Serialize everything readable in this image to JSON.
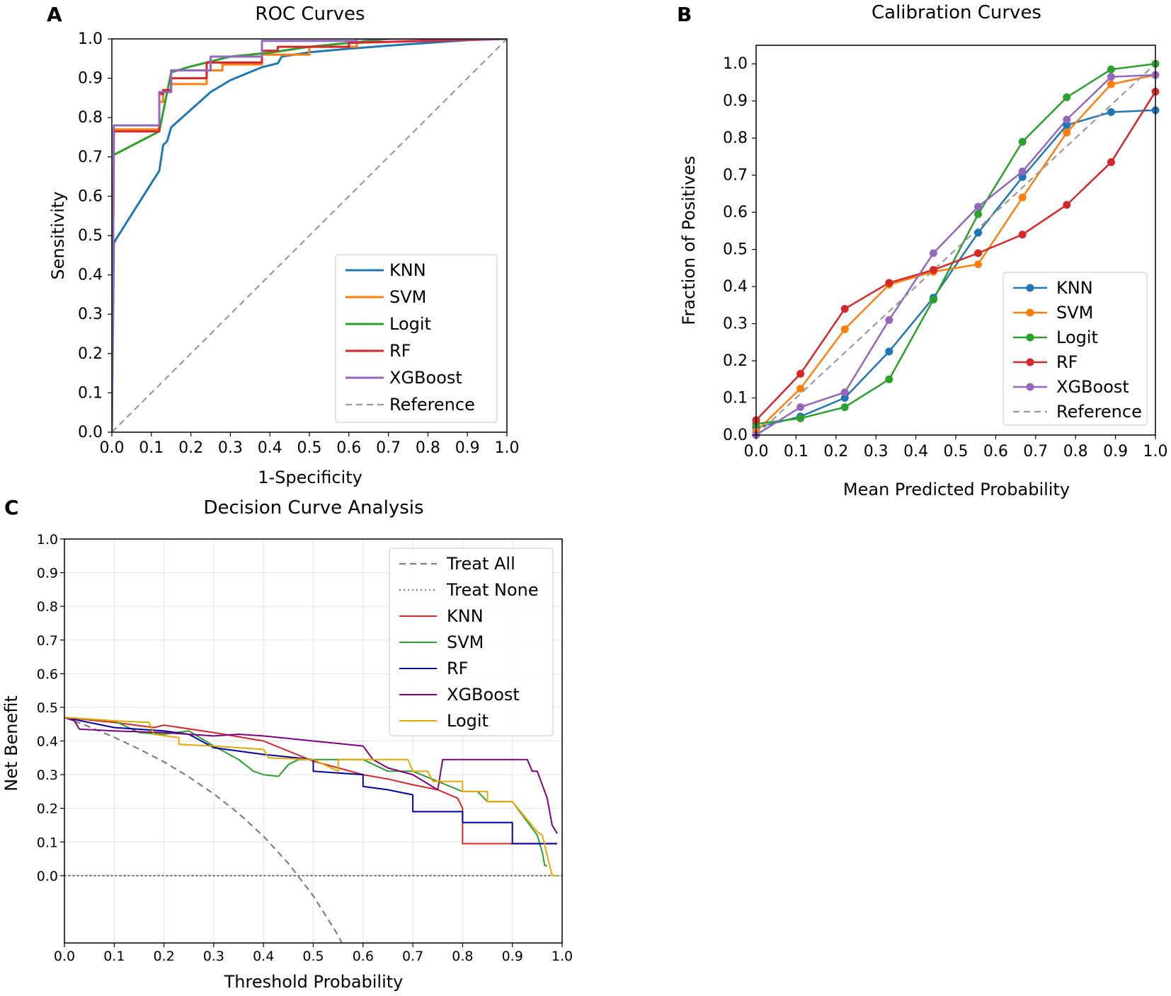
{
  "chart_data": [
    {
      "panel": "A",
      "type": "line",
      "title": "ROC Curves",
      "xlabel": "1-Specificity",
      "ylabel": "Sensitivity",
      "xlim": [
        0,
        1
      ],
      "ylim": [
        0,
        1
      ],
      "xticks": [
        "0.0",
        "0.1",
        "0.2",
        "0.3",
        "0.4",
        "0.5",
        "0.6",
        "0.7",
        "0.8",
        "0.9",
        "1.0"
      ],
      "yticks": [
        "0.0",
        "0.1",
        "0.2",
        "0.3",
        "0.4",
        "0.5",
        "0.6",
        "0.7",
        "0.8",
        "0.9",
        "1.0"
      ],
      "grid": false,
      "legend_position": "bottom-right",
      "series": [
        {
          "name": "KNN",
          "color": "#1f77b4",
          "style": "solid",
          "x": [
            0,
            0.005,
            0.01,
            0.12,
            0.13,
            0.14,
            0.15,
            0.2,
            0.25,
            0.3,
            0.38,
            0.42,
            0.43,
            0.5,
            0.6,
            0.7,
            0.8,
            0.9,
            1.0
          ],
          "y": [
            0,
            0.48,
            0.49,
            0.665,
            0.73,
            0.74,
            0.775,
            0.82,
            0.865,
            0.895,
            0.928,
            0.938,
            0.955,
            0.966,
            0.975,
            0.983,
            0.99,
            0.997,
            1.0
          ]
        },
        {
          "name": "SVM",
          "color": "#ff7f0e",
          "style": "solid",
          "x": [
            0,
            0.005,
            0.12,
            0.12,
            0.13,
            0.13,
            0.15,
            0.15,
            0.24,
            0.24,
            0.28,
            0.28,
            0.38,
            0.38,
            0.5,
            0.5,
            0.62,
            0.62,
            1.0
          ],
          "y": [
            0,
            0.77,
            0.77,
            0.84,
            0.84,
            0.865,
            0.865,
            0.885,
            0.885,
            0.92,
            0.92,
            0.935,
            0.935,
            0.96,
            0.96,
            0.98,
            0.98,
            1.0,
            1.0
          ]
        },
        {
          "name": "Logit",
          "color": "#2ca02c",
          "style": "solid",
          "x": [
            0,
            0.005,
            0.12,
            0.15,
            0.2,
            0.3,
            0.4,
            0.5,
            0.6,
            0.7,
            1.0
          ],
          "y": [
            0,
            0.705,
            0.765,
            0.915,
            0.93,
            0.955,
            0.965,
            0.98,
            0.99,
            1.0,
            1.0
          ]
        },
        {
          "name": "RF",
          "color": "#d62728",
          "style": "solid",
          "x": [
            0,
            0.005,
            0.12,
            0.12,
            0.13,
            0.13,
            0.15,
            0.15,
            0.24,
            0.24,
            0.38,
            0.38,
            0.42,
            0.42,
            0.6,
            0.6,
            1.0
          ],
          "y": [
            0,
            0.765,
            0.765,
            0.86,
            0.86,
            0.87,
            0.87,
            0.9,
            0.9,
            0.94,
            0.94,
            0.97,
            0.97,
            0.98,
            0.98,
            0.99,
            1.0
          ]
        },
        {
          "name": "XGBoost",
          "color": "#9467bd",
          "style": "solid",
          "x": [
            0,
            0.005,
            0.12,
            0.12,
            0.15,
            0.15,
            0.25,
            0.25,
            0.38,
            0.38,
            0.62,
            0.62,
            1.0
          ],
          "y": [
            0,
            0.78,
            0.78,
            0.865,
            0.865,
            0.92,
            0.92,
            0.955,
            0.955,
            0.995,
            0.995,
            1.0,
            1.0
          ]
        },
        {
          "name": "Reference",
          "color": "#999999",
          "style": "dashed",
          "x": [
            0,
            1
          ],
          "y": [
            0,
            1
          ]
        }
      ]
    },
    {
      "panel": "B",
      "type": "line",
      "title": "Calibration Curves",
      "xlabel": "Mean Predicted Probability",
      "ylabel": "Fraction of Positives",
      "xlim": [
        0,
        1
      ],
      "ylim": [
        0,
        1.05
      ],
      "xticks": [
        "0.0",
        "0.1",
        "0.2",
        "0.3",
        "0.4",
        "0.5",
        "0.6",
        "0.7",
        "0.8",
        "0.9",
        "1.0"
      ],
      "yticks": [
        "0.0",
        "0.1",
        "0.2",
        "0.3",
        "0.4",
        "0.5",
        "0.6",
        "0.7",
        "0.8",
        "0.9",
        "1.0"
      ],
      "grid": false,
      "legend_position": "lower-right",
      "markers": true,
      "series": [
        {
          "name": "KNN",
          "color": "#1f77b4",
          "style": "solid",
          "x": [
            0,
            0.111,
            0.222,
            0.333,
            0.444,
            0.556,
            0.667,
            0.778,
            0.889,
            1.0
          ],
          "y": [
            0.02,
            0.05,
            0.1,
            0.225,
            0.37,
            0.545,
            0.695,
            0.835,
            0.87,
            0.875
          ]
        },
        {
          "name": "SVM",
          "color": "#ff7f0e",
          "style": "solid",
          "x": [
            0,
            0.111,
            0.222,
            0.333,
            0.444,
            0.556,
            0.667,
            0.778,
            0.889,
            1.0
          ],
          "y": [
            0.01,
            0.125,
            0.285,
            0.405,
            0.44,
            0.46,
            0.64,
            0.815,
            0.945,
            0.97
          ]
        },
        {
          "name": "Logit",
          "color": "#2ca02c",
          "style": "solid",
          "x": [
            0,
            0.111,
            0.222,
            0.333,
            0.444,
            0.556,
            0.667,
            0.778,
            0.889,
            1.0
          ],
          "y": [
            0.03,
            0.045,
            0.075,
            0.15,
            0.365,
            0.595,
            0.79,
            0.91,
            0.985,
            1.0
          ]
        },
        {
          "name": "RF",
          "color": "#d62728",
          "style": "solid",
          "x": [
            0,
            0.111,
            0.222,
            0.333,
            0.444,
            0.556,
            0.667,
            0.778,
            0.889,
            1.0
          ],
          "y": [
            0.04,
            0.165,
            0.34,
            0.41,
            0.445,
            0.49,
            0.54,
            0.62,
            0.735,
            0.925
          ]
        },
        {
          "name": "XGBoost",
          "color": "#9467bd",
          "style": "solid",
          "x": [
            0,
            0.111,
            0.222,
            0.333,
            0.444,
            0.556,
            0.667,
            0.778,
            0.889,
            1.0
          ],
          "y": [
            0.0,
            0.075,
            0.115,
            0.31,
            0.49,
            0.615,
            0.71,
            0.85,
            0.965,
            0.97
          ]
        },
        {
          "name": "Reference",
          "color": "#999999",
          "style": "dashed",
          "markers": false,
          "x": [
            0,
            1
          ],
          "y": [
            0,
            1
          ]
        }
      ]
    },
    {
      "panel": "C",
      "type": "line",
      "title": "Decision Curve Analysis",
      "xlabel": "Threshold Probability",
      "ylabel": "Net Benefit",
      "xlim": [
        0,
        1
      ],
      "ylim": [
        -0.2,
        1.0
      ],
      "xticks": [
        "0.0",
        "0.1",
        "0.2",
        "0.3",
        "0.4",
        "0.5",
        "0.6",
        "0.7",
        "0.8",
        "0.9",
        "1.0"
      ],
      "yticks": [
        "0.0",
        "0.1",
        "0.2",
        "0.3",
        "0.4",
        "0.5",
        "0.6",
        "0.7",
        "0.8",
        "0.9",
        "1.0"
      ],
      "grid": true,
      "legend_position": "upper-right",
      "series": [
        {
          "name": "Treat All",
          "color": "#808080",
          "style": "dashed",
          "x": [
            0,
            0.05,
            0.1,
            0.15,
            0.2,
            0.25,
            0.3,
            0.35,
            0.4,
            0.45,
            0.5,
            0.55,
            0.557
          ],
          "y": [
            0.47,
            0.442,
            0.411,
            0.376,
            0.338,
            0.293,
            0.243,
            0.185,
            0.117,
            0.036,
            -0.06,
            -0.178,
            -0.2
          ]
        },
        {
          "name": "Treat None",
          "color": "#808080",
          "style": "dotted",
          "x": [
            0,
            1
          ],
          "y": [
            0,
            0
          ]
        },
        {
          "name": "KNN",
          "color": "#d62728",
          "style": "solid",
          "x": [
            0,
            0.1,
            0.18,
            0.2,
            0.3,
            0.4,
            0.5,
            0.6,
            0.65,
            0.7,
            0.75,
            0.79,
            0.8,
            0.8,
            0.99
          ],
          "y": [
            0.47,
            0.455,
            0.44,
            0.447,
            0.425,
            0.4,
            0.34,
            0.3,
            0.287,
            0.27,
            0.255,
            0.23,
            0.2,
            0.095,
            0.095
          ]
        },
        {
          "name": "SVM",
          "color": "#2ca02c",
          "style": "solid",
          "x": [
            0,
            0.1,
            0.15,
            0.2,
            0.25,
            0.3,
            0.35,
            0.38,
            0.4,
            0.43,
            0.45,
            0.47,
            0.5,
            0.6,
            0.65,
            0.7,
            0.75,
            0.8,
            0.83,
            0.85,
            0.9,
            0.93,
            0.95,
            0.96,
            0.965,
            0.97
          ],
          "y": [
            0.47,
            0.46,
            0.425,
            0.42,
            0.43,
            0.385,
            0.345,
            0.31,
            0.3,
            0.295,
            0.33,
            0.345,
            0.345,
            0.345,
            0.31,
            0.31,
            0.28,
            0.25,
            0.25,
            0.22,
            0.22,
            0.16,
            0.12,
            0.07,
            0.03,
            0.03
          ]
        },
        {
          "name": "RF",
          "color": "#0000aa",
          "style": "solid",
          "x": [
            0,
            0.1,
            0.2,
            0.25,
            0.3,
            0.4,
            0.5,
            0.5,
            0.55,
            0.6,
            0.6,
            0.65,
            0.7,
            0.7,
            0.8,
            0.8,
            0.9,
            0.9,
            0.99
          ],
          "y": [
            0.47,
            0.44,
            0.43,
            0.42,
            0.38,
            0.36,
            0.345,
            0.31,
            0.305,
            0.3,
            0.265,
            0.255,
            0.24,
            0.19,
            0.19,
            0.158,
            0.158,
            0.095,
            0.095
          ]
        },
        {
          "name": "XGBoost",
          "color": "#800080",
          "style": "solid",
          "x": [
            0,
            0.02,
            0.03,
            0.1,
            0.2,
            0.3,
            0.35,
            0.4,
            0.5,
            0.6,
            0.62,
            0.65,
            0.7,
            0.75,
            0.76,
            0.8,
            0.93,
            0.94,
            0.95,
            0.97,
            0.98,
            0.99
          ],
          "y": [
            0.47,
            0.46,
            0.435,
            0.43,
            0.425,
            0.415,
            0.42,
            0.415,
            0.4,
            0.385,
            0.345,
            0.32,
            0.3,
            0.255,
            0.345,
            0.345,
            0.345,
            0.31,
            0.31,
            0.23,
            0.15,
            0.125
          ]
        },
        {
          "name": "Logit",
          "color": "#e6a800",
          "style": "solid",
          "x": [
            0,
            0.1,
            0.17,
            0.18,
            0.23,
            0.23,
            0.3,
            0.4,
            0.41,
            0.5,
            0.55,
            0.55,
            0.65,
            0.69,
            0.7,
            0.73,
            0.74,
            0.8,
            0.8,
            0.85,
            0.85,
            0.9,
            0.95,
            0.96,
            0.98,
            0.99
          ],
          "y": [
            0.47,
            0.46,
            0.455,
            0.42,
            0.41,
            0.39,
            0.385,
            0.375,
            0.35,
            0.345,
            0.31,
            0.345,
            0.345,
            0.345,
            0.31,
            0.31,
            0.28,
            0.28,
            0.25,
            0.25,
            0.22,
            0.22,
            0.13,
            0.12,
            0.0,
            0.0
          ]
        }
      ]
    }
  ]
}
